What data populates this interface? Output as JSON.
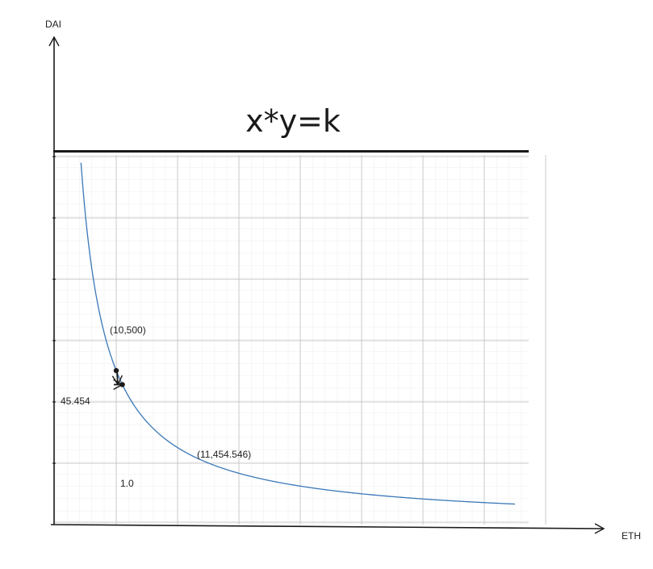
{
  "chart_data": {
    "type": "line",
    "title": "x*y=k",
    "xlabel": "ETH",
    "ylabel": "DAI",
    "grid": true,
    "series": [
      {
        "x": [
          1.5,
          2,
          3,
          4,
          5,
          6,
          7,
          8,
          9,
          10,
          11,
          12,
          14,
          16,
          18,
          20,
          24,
          28,
          32,
          36,
          40,
          44,
          48,
          52,
          56,
          60,
          64,
          68,
          72,
          75
        ],
        "values": [
          3333.3,
          2500,
          1666.7,
          1250,
          1000,
          833.3,
          714.3,
          625,
          555.6,
          500,
          454.5,
          416.7,
          357.1,
          312.5,
          277.8,
          250,
          208.3,
          178.6,
          156.3,
          138.9,
          125,
          113.6,
          104.2,
          96.2,
          89.3,
          83.3,
          78.1,
          73.5,
          69.4,
          66.7
        ],
        "color": "#3a78b8"
      }
    ],
    "points": [
      {
        "x": 10,
        "y": 500,
        "label": "(10,500)"
      },
      {
        "x": 11,
        "y": 454.546,
        "label": "(11,454.546)"
      }
    ],
    "annotations": [
      {
        "text": "45.454",
        "kind": "vertical-delta"
      },
      {
        "text": "1.0",
        "kind": "horizontal-delta"
      }
    ]
  }
}
